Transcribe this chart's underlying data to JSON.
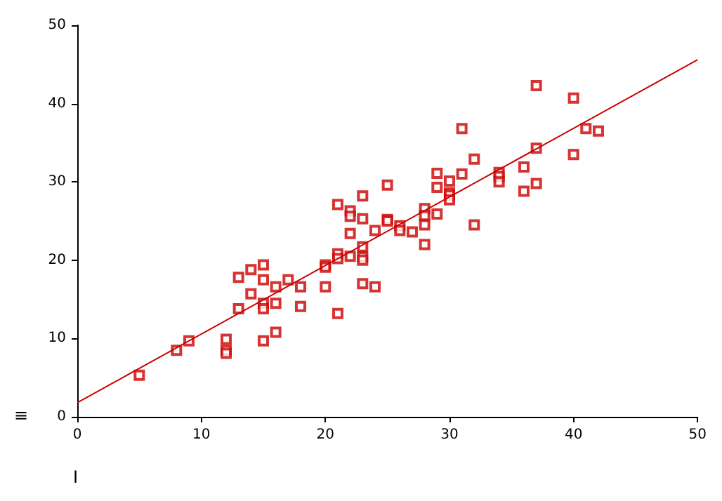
{
  "chart_data": {
    "type": "scatter",
    "xlabel": "I",
    "ylabel": "≡",
    "xlim": [
      0,
      50
    ],
    "ylim": [
      0,
      50
    ],
    "xticks": [
      0,
      10,
      20,
      30,
      40,
      50
    ],
    "yticks": [
      0,
      10,
      20,
      30,
      40,
      50
    ],
    "grid": false,
    "marker": "square",
    "series": [
      {
        "color": "#cc0000",
        "x": [
          5,
          8,
          9,
          12,
          12,
          12,
          13,
          13,
          14,
          14,
          15,
          15,
          15,
          15,
          15,
          16,
          16,
          16,
          17,
          18,
          18,
          20,
          20,
          20,
          21,
          21,
          21,
          21,
          22,
          22,
          22,
          22,
          23,
          23,
          23,
          23,
          23,
          23,
          24,
          24,
          25,
          25,
          25,
          26,
          26,
          27,
          28,
          28,
          28,
          28,
          29,
          29,
          29,
          30,
          30,
          30,
          30,
          31,
          31,
          32,
          32,
          34,
          34,
          34,
          36,
          36,
          37,
          37,
          37,
          40,
          40,
          41,
          42
        ],
        "values": [
          5.3,
          8.5,
          9.7,
          9.9,
          8.5,
          8.1,
          13.8,
          17.8,
          18.8,
          15.7,
          19.4,
          17.5,
          14.5,
          13.8,
          9.7,
          16.6,
          14.5,
          10.8,
          17.5,
          16.6,
          14.1,
          19.4,
          19.1,
          16.6,
          27.1,
          20.8,
          20.2,
          13.2,
          26.3,
          25.6,
          23.4,
          20.5,
          28.2,
          25.3,
          21.7,
          20.4,
          20.0,
          17.0,
          23.8,
          16.6,
          29.6,
          25.2,
          25.0,
          24.4,
          23.8,
          23.6,
          26.6,
          25.7,
          24.5,
          22.0,
          31.1,
          29.3,
          25.9,
          30.1,
          28.6,
          28.3,
          27.7,
          36.8,
          31.0,
          32.9,
          24.5,
          31.2,
          30.7,
          30.0,
          31.9,
          28.8,
          42.3,
          34.3,
          29.8,
          40.7,
          33.5,
          36.8,
          36.5
        ]
      },
      {
        "type": "line",
        "color": "#cc0000",
        "marker": "none",
        "x": [
          0,
          50
        ],
        "values": [
          1.8,
          45.6
        ]
      }
    ]
  }
}
